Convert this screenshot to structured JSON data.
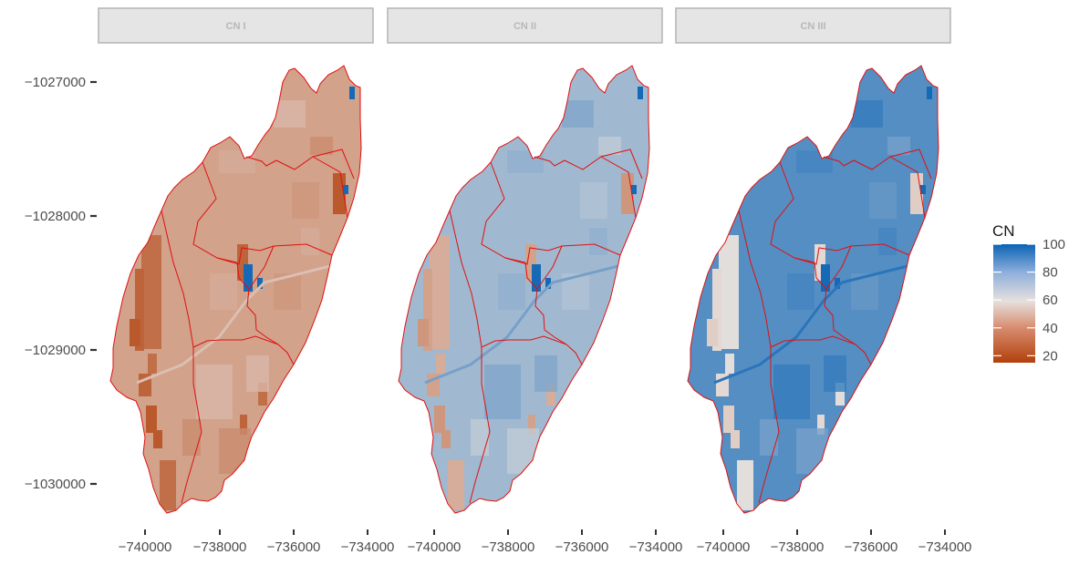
{
  "panels": [
    {
      "strip_label": "CN I",
      "fill_level": 42,
      "hot_level": 28,
      "water_level": 98
    },
    {
      "strip_label": "CN II",
      "fill_level": 72,
      "hot_level": 45,
      "water_level": 98
    },
    {
      "strip_label": "CN III",
      "fill_level": 86,
      "hot_level": 60,
      "water_level": 98
    }
  ],
  "x_ticks": [
    "−740000",
    "−738000",
    "−736000",
    "−734000"
  ],
  "y_ticks": [
    "−1027000",
    "−1028000",
    "−1029000",
    "−1030000"
  ],
  "legend": {
    "title": "CN",
    "labels": [
      "100",
      "80",
      "60",
      "40",
      "20"
    ],
    "range": [
      15,
      100
    ]
  },
  "colors": {
    "low": "#b2400b",
    "mid": "#e6e0dd",
    "high": "#0a63b5",
    "boundary": "#e01010",
    "strip_bg": "#e5e5e5",
    "strip_border": "#b3b3b3"
  }
}
